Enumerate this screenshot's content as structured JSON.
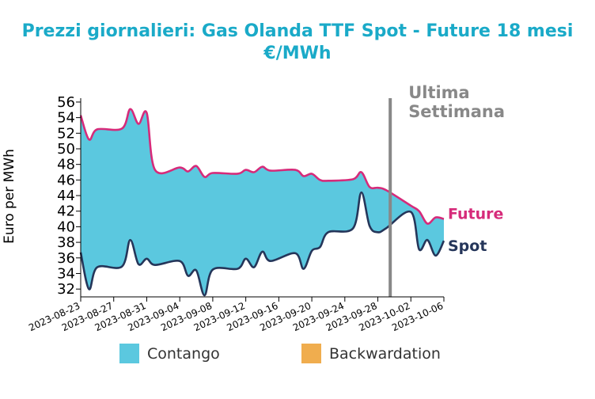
{
  "chart_data": {
    "type": "area",
    "title": "Prezzi giornalieri: Gas Olanda TTF Spot - Future 18 mesi",
    "subtitle": "€/MWh",
    "xlabel": "",
    "ylabel": "Euro per MWh",
    "ylim": [
      31,
      56.5
    ],
    "yticks": [
      32,
      34,
      36,
      38,
      40,
      42,
      44,
      46,
      48,
      50,
      52,
      54,
      56
    ],
    "xticks": [
      "2023-08-23",
      "2023-08-27",
      "2023-08-31",
      "2023-09-04",
      "2023-09-08",
      "2023-09-12",
      "2023-09-16",
      "2023-09-20",
      "2023-09-24",
      "2023-09-28",
      "2023-10-02",
      "2023-10-06"
    ],
    "xlim": [
      "2023-08-23",
      "2023-10-06"
    ],
    "grid": false,
    "dates": [
      "2023-08-23",
      "2023-08-24",
      "2023-08-25",
      "2023-08-28",
      "2023-08-29",
      "2023-08-30",
      "2023-08-31",
      "2023-09-01",
      "2023-09-04",
      "2023-09-05",
      "2023-09-06",
      "2023-09-07",
      "2023-09-08",
      "2023-09-11",
      "2023-09-12",
      "2023-09-13",
      "2023-09-14",
      "2023-09-15",
      "2023-09-18",
      "2023-09-19",
      "2023-09-20",
      "2023-09-21",
      "2023-09-22",
      "2023-09-25",
      "2023-09-26",
      "2023-09-27",
      "2023-09-28",
      "2023-09-29",
      "2023-10-02",
      "2023-10-03",
      "2023-10-04",
      "2023-10-05",
      "2023-10-06"
    ],
    "series": [
      {
        "name": "Future",
        "color": "#d62b7a",
        "values": [
          54.3,
          51.2,
          52.5,
          52.6,
          55.1,
          53.2,
          54.6,
          47.3,
          47.6,
          47.1,
          47.8,
          46.4,
          46.9,
          46.8,
          47.3,
          47.0,
          47.7,
          47.2,
          47.3,
          46.5,
          46.8,
          46.0,
          45.9,
          46.1,
          47.0,
          45.1,
          45.0,
          44.7,
          42.7,
          42.0,
          40.4,
          41.2,
          41.0
        ]
      },
      {
        "name": "Spot",
        "color": "#25365a",
        "values": [
          36.7,
          32.0,
          34.8,
          34.9,
          38.3,
          35.2,
          35.9,
          35.1,
          35.6,
          33.7,
          34.4,
          31.2,
          34.5,
          34.6,
          35.9,
          34.8,
          36.8,
          35.6,
          36.6,
          34.6,
          36.9,
          37.4,
          39.3,
          39.8,
          44.4,
          40.1,
          39.3,
          39.8,
          41.9,
          37.1,
          38.3,
          36.3,
          38.2
        ]
      }
    ],
    "fill": {
      "contango_color": "#5bc8df",
      "backwardation_color": "#f0ad4e"
    },
    "annotation": {
      "date": "2023-09-29",
      "text": "Ultima Settimana",
      "line_color": "#888888",
      "text_color": "#888888"
    },
    "legend": {
      "placement": "bottom",
      "entries": [
        {
          "label": "Contango",
          "color": "#5bc8df"
        },
        {
          "label": "Backwardation",
          "color": "#f0ad4e"
        }
      ]
    }
  }
}
